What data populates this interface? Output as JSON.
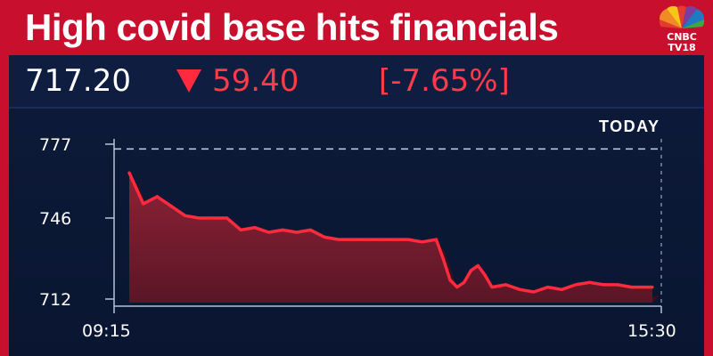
{
  "headline": "High covid base hits financials",
  "logo": {
    "line1": "CNBC",
    "line2": "TV18",
    "icon": "peacock-icon"
  },
  "ticker": {
    "price": "717.20",
    "change": "59.40",
    "change_pct": "[-7.65%]",
    "direction_icon": "down-triangle-icon"
  },
  "chart_data": {
    "type": "area",
    "period_label": "TODAY",
    "x_tick_labels": [
      "09:15",
      "15:30"
    ],
    "y_tick_labels": [
      "777",
      "746",
      "712"
    ],
    "ylim": [
      712,
      777
    ],
    "reference_line": {
      "value": 775,
      "style": "dashed"
    },
    "grid": false,
    "series": [
      {
        "x": [
          "09:15",
          "09:25",
          "09:35",
          "09:45",
          "09:55",
          "10:05",
          "10:15",
          "10:25",
          "10:35",
          "10:45",
          "10:55",
          "11:05",
          "11:15",
          "11:25",
          "11:35",
          "11:45",
          "11:55",
          "12:05",
          "12:15",
          "12:25",
          "12:35",
          "12:45",
          "12:55",
          "13:00",
          "13:05",
          "13:10",
          "13:15",
          "13:20",
          "13:25",
          "13:30",
          "13:35",
          "13:45",
          "13:55",
          "14:05",
          "14:15",
          "14:25",
          "14:35",
          "14:45",
          "14:55",
          "15:05",
          "15:15",
          "15:30"
        ],
        "values": [
          765,
          752,
          755,
          751,
          747,
          746,
          746,
          746,
          741,
          742,
          740,
          741,
          740,
          741,
          738,
          737,
          737,
          737,
          737,
          737,
          737,
          736,
          737,
          729,
          720,
          717,
          719,
          724,
          726,
          722,
          717,
          718,
          716,
          715,
          717,
          716,
          718,
          719,
          718,
          718,
          717,
          717
        ]
      }
    ],
    "colors": {
      "line": "#ff2a3d",
      "fill": "#7d1d2e",
      "axis": "#b8c2d6"
    }
  }
}
